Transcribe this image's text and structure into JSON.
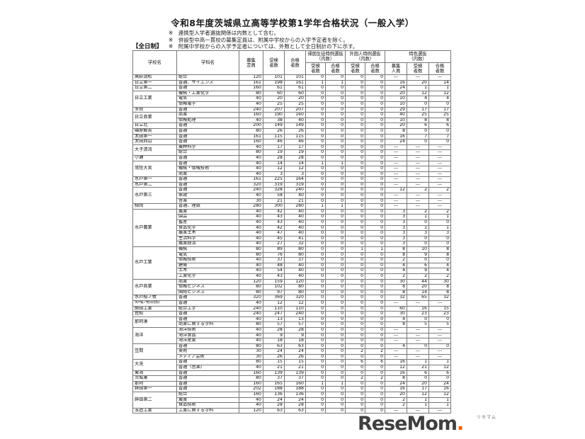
{
  "page": {
    "title": "令和8年度茨城県立高等学校第1学年合格状況（一般入学）",
    "notes": [
      "※　連携型入学者選抜関係は内数として含む。",
      "※　併設型中高一貫校の募集定員は、附属中学校からの入学予定者を除く。",
      "※　附属中学校からの入学予定者については、外数として全日制計の下に示す。"
    ],
    "section_label": "【全日制】"
  },
  "table": {
    "headers": {
      "school": "学校名",
      "dept": "学科名",
      "capacity": "募集\n定員",
      "examinees": "受検\n者数",
      "passers": "合格\n者数",
      "returnee_group": "帰国生徒特例選抜\n（内数）",
      "foreigner_group": "外国人特例選抜\n（内数）",
      "tokushoku_group": "特色選抜\n（内数）",
      "sub_examinees": "受検\n者数",
      "sub_passers": "合格\n者数",
      "sub_quota": "募集\n人員"
    },
    "groups": [
      {
        "school": "高萩清松",
        "depts": [
          {
            "name": "総合",
            "values": [
              120,
              101,
              101,
              0,
              0,
              0,
              0,
              "―",
              "―",
              "―"
            ]
          }
        ]
      },
      {
        "school": "日立第一",
        "depts": [
          {
            "name": "普通、サイエンス",
            "values": [
              161,
              198,
              161,
              1,
              1,
              0,
              0,
              16,
              20,
              14
            ]
          }
        ]
      },
      {
        "school": "日立第二",
        "depts": [
          {
            "name": "普通",
            "values": [
              160,
              61,
              61,
              0,
              0,
              0,
              0,
              24,
              1,
              1
            ]
          }
        ]
      },
      {
        "school": "日立工業",
        "depts": [
          {
            "name": "機械・工業化学",
            "values": [
              80,
              60,
              60,
              0,
              0,
              0,
              0,
              20,
              12,
              12
            ]
          },
          {
            "name": "電気",
            "values": [
              40,
              20,
              20,
              0,
              0,
              0,
              0,
              10,
              4,
              4
            ]
          },
          {
            "name": "情報電子",
            "values": [
              40,
              25,
              25,
              0,
              0,
              0,
              0,
              10,
              0,
              0
            ]
          }
        ]
      },
      {
        "school": "多賀",
        "depts": [
          {
            "name": "普通",
            "values": [
              240,
              207,
              207,
              0,
              0,
              0,
              0,
              29,
              17,
              17
            ]
          }
        ]
      },
      {
        "school": "日立商業",
        "depts": [
          {
            "name": "商業",
            "values": [
              160,
              190,
              160,
              0,
              0,
              0,
              0,
              40,
              25,
              25
            ]
          },
          {
            "name": "情報処理",
            "values": [
              40,
              38,
              40,
              0,
              0,
              0,
              0,
              10,
              8,
              8
            ]
          }
        ]
      },
      {
        "school": "日立北",
        "depts": [
          {
            "name": "普通",
            "values": [
              200,
              149,
              149,
              0,
              0,
              0,
              0,
              20,
              6,
              6
            ]
          }
        ]
      },
      {
        "school": "磯原郷英",
        "depts": [
          {
            "name": "普通",
            "values": [
              80,
              26,
              26,
              0,
              0,
              0,
              0,
              8,
              0,
              0
            ]
          }
        ]
      },
      {
        "school": "太田第一",
        "depts": [
          {
            "name": "普通",
            "values": [
              161,
              115,
              115,
              0,
              0,
              0,
              0,
              16,
              7,
              7
            ]
          }
        ]
      },
      {
        "school": "太田西山",
        "depts": [
          {
            "name": "普通",
            "values": [
              160,
              46,
              46,
              0,
              0,
              0,
              0,
              24,
              0,
              0
            ]
          }
        ]
      },
      {
        "school": "大子清流",
        "depts": [
          {
            "name": "農林科学",
            "values": [
              40,
              17,
              17,
              0,
              0,
              0,
              0,
              "―",
              "―",
              "―"
            ]
          },
          {
            "name": "総合",
            "values": [
              80,
              19,
              19,
              0,
              0,
              0,
              0,
              "―",
              "―",
              "―"
            ]
          }
        ]
      },
      {
        "school": "小瀬",
        "depts": [
          {
            "name": "普通",
            "values": [
              40,
              28,
              28,
              0,
              0,
              0,
              0,
              "―",
              "―",
              "―"
            ]
          }
        ]
      },
      {
        "school": "常陸大宮",
        "depts": [
          {
            "name": "普通",
            "values": [
              40,
              14,
              14,
              1,
              1,
              0,
              0,
              "―",
              "―",
              "―"
            ]
          },
          {
            "name": "機械・情報技術",
            "values": [
              40,
              12,
              12,
              0,
              0,
              0,
              0,
              "―",
              "―",
              "―"
            ]
          },
          {
            "name": "商業",
            "values": [
              40,
              3,
              3,
              0,
              0,
              0,
              0,
              "―",
              "―",
              "―"
            ]
          }
        ]
      },
      {
        "school": "水戸第一",
        "depts": [
          {
            "name": "普通",
            "values": [
              161,
              225,
              164,
              0,
              0,
              0,
              0,
              "―",
              "―",
              "―"
            ]
          }
        ]
      },
      {
        "school": "水戸第二",
        "depts": [
          {
            "name": "普通",
            "values": [
              320,
              319,
              319,
              0,
              0,
              0,
              0,
              "―",
              "―",
              "―"
            ]
          }
        ]
      },
      {
        "school": "水戸第三",
        "depts": [
          {
            "name": "普通",
            "values": [
              240,
              328,
              240,
              0,
              0,
              0,
              0,
              12,
              2,
              2
            ]
          },
          {
            "name": "家政",
            "values": [
              40,
              58,
              40,
              0,
              0,
              0,
              0,
              "―",
              "―",
              "―"
            ]
          },
          {
            "name": "音楽",
            "values": [
              30,
              21,
              21,
              0,
              0,
              0,
              0,
              "―",
              "―",
              "―"
            ]
          }
        ]
      },
      {
        "school": "緑岡",
        "depts": [
          {
            "name": "普通、理数",
            "values": [
              280,
              300,
              280,
              1,
              1,
              0,
              0,
              "―",
              "―",
              "―"
            ]
          }
        ]
      },
      {
        "school": "水戸農業",
        "depts": [
          {
            "name": "農業",
            "values": [
              40,
              42,
              40,
              0,
              0,
              0,
              0,
              3,
              2,
              2
            ]
          },
          {
            "name": "園芸",
            "values": [
              40,
              43,
              40,
              0,
              0,
              0,
              0,
              3,
              1,
              1
            ]
          },
          {
            "name": "畜産",
            "values": [
              40,
              43,
              40,
              0,
              0,
              0,
              0,
              3,
              0,
              0
            ]
          },
          {
            "name": "食品化学",
            "values": [
              40,
              42,
              40,
              0,
              0,
              0,
              0,
              3,
              1,
              1
            ]
          },
          {
            "name": "農業土木",
            "values": [
              40,
              47,
              40,
              0,
              0,
              0,
              0,
              3,
              3,
              3
            ]
          },
          {
            "name": "生活科学",
            "values": [
              40,
              45,
              41,
              0,
              0,
              0,
              0,
              3,
              0,
              0
            ]
          },
          {
            "name": "農業経済",
            "values": [
              40,
              27,
              32,
              0,
              0,
              0,
              0,
              3,
              0,
              0
            ]
          }
        ]
      },
      {
        "school": "水戸工業",
        "depts": [
          {
            "name": "機械",
            "values": [
              80,
              89,
              80,
              0,
              0,
              1,
              1,
              8,
              10,
              8
            ]
          },
          {
            "name": "電気",
            "values": [
              80,
              76,
              80,
              0,
              0,
              0,
              0,
              8,
              9,
              8
            ]
          },
          {
            "name": "情報技術",
            "values": [
              40,
              37,
              37,
              0,
              0,
              0,
              0,
              2,
              0,
              0
            ]
          },
          {
            "name": "建築",
            "values": [
              40,
              48,
              40,
              0,
              0,
              0,
              0,
              4,
              6,
              4
            ]
          },
          {
            "name": "土木",
            "values": [
              40,
              54,
              40,
              0,
              0,
              0,
              0,
              4,
              9,
              4
            ]
          },
          {
            "name": "工業化学",
            "values": [
              40,
              43,
              40,
              0,
              0,
              0,
              0,
              2,
              2,
              2
            ]
          }
        ]
      },
      {
        "school": "水戸商業",
        "depts": [
          {
            "name": "商業",
            "values": [
              120,
              159,
              120,
              0,
              0,
              0,
              0,
              30,
              44,
              30
            ]
          },
          {
            "name": "情報ビジネス",
            "values": [
              80,
              102,
              80,
              0,
              0,
              0,
              0,
              8,
              20,
              8
            ]
          },
          {
            "name": "国際ビジネス",
            "values": [
              80,
              97,
              80,
              0,
              0,
              0,
              0,
              8,
              14,
              8
            ]
          }
        ]
      },
      {
        "school": "水戸桜ノ牧",
        "depts": [
          {
            "name": "普通",
            "values": [
              320,
              369,
              320,
              0,
              0,
              0,
              0,
              32,
              65,
              32
            ]
          }
        ]
      },
      {
        "school": "水戸桜ノ牧(常北校)",
        "small": true,
        "depts": [
          {
            "name": "普通",
            "values": [
              40,
              12,
              12,
              0,
              0,
              0,
              0,
              "―",
              "―",
              "―"
            ]
          }
        ]
      },
      {
        "school": "勝田工業",
        "depts": [
          {
            "name": "総合工学",
            "values": [
              240,
              110,
              110,
              0,
              0,
              0,
              0,
              60,
              16,
              15
            ]
          }
        ]
      },
      {
        "school": "佐和",
        "depts": [
          {
            "name": "普通",
            "values": [
              240,
              247,
              240,
              0,
              0,
              0,
              0,
              30,
              23,
              23
            ]
          }
        ]
      },
      {
        "school": "那珂湊",
        "depts": [
          {
            "name": "普通",
            "values": [
              40,
              13,
              13,
              0,
              0,
              0,
              0,
              4,
              0,
              0
            ]
          },
          {
            "name": "商業に関する学科",
            "values": [
              80,
              57,
              57,
              0,
              0,
              0,
              0,
              8,
              5,
              5
            ]
          }
        ]
      },
      {
        "school": "海洋",
        "depts": [
          {
            "name": "海洋技術",
            "values": [
              40,
              28,
              28,
              0,
              0,
              0,
              0,
              "―",
              "―",
              "―"
            ]
          },
          {
            "name": "海洋食品",
            "values": [
              40,
              9,
              9,
              0,
              0,
              0,
              0,
              "―",
              "―",
              "―"
            ]
          },
          {
            "name": "海洋産業",
            "values": [
              40,
              18,
              18,
              0,
              0,
              0,
              0,
              "―",
              "―",
              "―"
            ]
          }
        ]
      },
      {
        "school": "笠間",
        "depts": [
          {
            "name": "普通",
            "values": [
              80,
              63,
              63,
              0,
              0,
              0,
              0,
              4,
              0,
              0
            ]
          },
          {
            "name": "美術",
            "values": [
              30,
              24,
              24,
              0,
              0,
              2,
              2,
              "―",
              "―",
              "―"
            ]
          },
          {
            "name": "メディア芸術",
            "values": [
              30,
              26,
              26,
              0,
              0,
              0,
              0,
              "―",
              "―",
              "―"
            ]
          }
        ]
      },
      {
        "school": "大洗",
        "depts": [
          {
            "name": "普通",
            "values": [
              80,
              15,
              15,
              0,
              0,
              6,
              6,
              16,
              1,
              1
            ]
          },
          {
            "name": "普通（音楽）",
            "values": [
              40,
              21,
              21,
              0,
              0,
              0,
              0,
              12,
              21,
              12
            ]
          }
        ]
      },
      {
        "school": "東海",
        "depts": [
          {
            "name": "普通",
            "values": [
              160,
              139,
              139,
              0,
              0,
              0,
              0,
              16,
              6,
              6
            ]
          }
        ]
      },
      {
        "school": "茨城東",
        "depts": [
          {
            "name": "普通",
            "values": [
              80,
              37,
              37,
              0,
              0,
              2,
              2,
              8,
              0,
              0
            ]
          }
        ]
      },
      {
        "school": "那珂",
        "depts": [
          {
            "name": "普通",
            "values": [
              160,
              165,
              160,
              1,
              1,
              0,
              0,
              24,
              20,
              24
            ]
          }
        ]
      },
      {
        "school": "鉾田第一",
        "depts": [
          {
            "name": "普通",
            "values": [
              202,
              188,
              188,
              0,
              0,
              0,
              0,
              16,
              17,
              16
            ]
          }
        ]
      },
      {
        "school": "鉾田第二",
        "depts": [
          {
            "name": "総合",
            "values": [
              160,
              136,
              136,
              0,
              0,
              0,
              0,
              20,
              12,
              12
            ]
          },
          {
            "name": "農業",
            "values": [
              40,
              24,
              24,
              0,
              0,
              0,
              0,
              2,
              1,
              1
            ]
          },
          {
            "name": "食品技術",
            "values": [
              40,
              28,
              28,
              0,
              0,
              0,
              0,
              2,
              1,
              1
            ]
          }
        ]
      },
      {
        "school": "玉造工業",
        "depts": [
          {
            "name": "工業に関する学科",
            "values": [
              120,
              63,
              63,
              0,
              0,
              0,
              0,
              "―",
              "―",
              "―"
            ]
          }
        ]
      }
    ]
  },
  "footer_logo": {
    "text": "ReseMom",
    "dot": ".",
    "kana": "リセマム",
    "text_color": "#3f3f3f",
    "dot_color": "#f06000"
  }
}
